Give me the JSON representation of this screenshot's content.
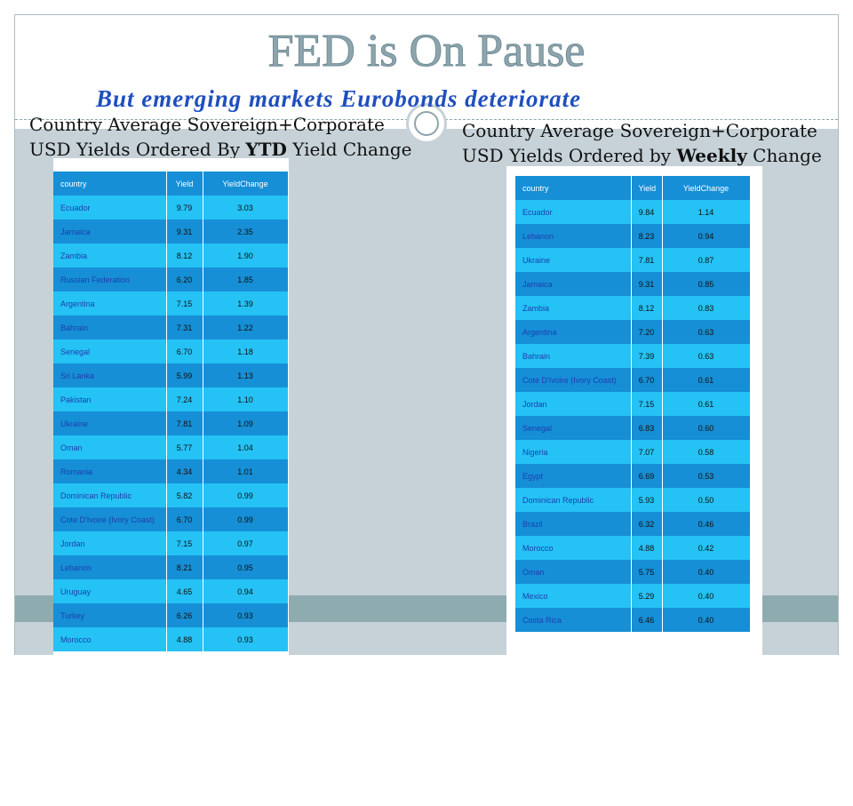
{
  "title": "FED is On Pause",
  "subtitle": "But emerging markets Eurobonds deteriorate",
  "left": {
    "caption": {
      "line1": "Country Average Sovereign+Corporate",
      "before": "USD Yields Ordered By ",
      "bold": "YTD",
      "after": " Yield Change"
    },
    "table": {
      "header": [
        "country",
        "Yield",
        "YieldChange"
      ],
      "rows": [
        [
          "Ecuador",
          "9.79",
          "3.03"
        ],
        [
          "Jamaica",
          "9.31",
          "2.35"
        ],
        [
          "Zambia",
          "8.12",
          "1.90"
        ],
        [
          "Russian Federation",
          "6.20",
          "1.85"
        ],
        [
          "Argentina",
          "7.15",
          "1.39"
        ],
        [
          "Bahrain",
          "7.31",
          "1.22"
        ],
        [
          "Senegal",
          "6.70",
          "1.18"
        ],
        [
          "Sri Lanka",
          "5.99",
          "1.13"
        ],
        [
          "Pakistan",
          "7.24",
          "1.10"
        ],
        [
          "Ukraine",
          "7.81",
          "1.09"
        ],
        [
          "Oman",
          "5.77",
          "1.04"
        ],
        [
          "Romania",
          "4.34",
          "1.01"
        ],
        [
          "Dominican Republic",
          "5.82",
          "0.99"
        ],
        [
          "Cote D'Ivoire (Ivory Coast)",
          "6.70",
          "0.99"
        ],
        [
          "Jordan",
          "7.15",
          "0.97"
        ],
        [
          "Lebanon",
          "8.21",
          "0.95"
        ],
        [
          "Uruguay",
          "4.65",
          "0.94"
        ],
        [
          "Turkey",
          "6.26",
          "0.93"
        ],
        [
          "Morocco",
          "4.88",
          "0.93"
        ]
      ]
    }
  },
  "right": {
    "caption": {
      "line1": "Country Average Sovereign+Corporate",
      "before": "USD Yields Ordered by ",
      "bold": "Weekly",
      "after": " Change"
    },
    "table": {
      "header": [
        "country",
        "Yield",
        "YieldChange"
      ],
      "rows": [
        [
          "Ecuador",
          "9.84",
          "1.14"
        ],
        [
          "Lebanon",
          "8.23",
          "0.94"
        ],
        [
          "Ukraine",
          "7.81",
          "0.87"
        ],
        [
          "Jamaica",
          "9.31",
          "0.85"
        ],
        [
          "Zambia",
          "8.12",
          "0.83"
        ],
        [
          "Argentina",
          "7.20",
          "0.63"
        ],
        [
          "Bahrain",
          "7.39",
          "0.63"
        ],
        [
          "Cote D'Ivoire (Ivory Coast)",
          "6.70",
          "0.61"
        ],
        [
          "Jordan",
          "7.15",
          "0.61"
        ],
        [
          "Senegal",
          "6.83",
          "0.60"
        ],
        [
          "Nigeria",
          "7.07",
          "0.58"
        ],
        [
          "Egypt",
          "6.69",
          "0.53"
        ],
        [
          "Dominican Republic",
          "5.93",
          "0.50"
        ],
        [
          "Brazil",
          "6.32",
          "0.46"
        ],
        [
          "Morocco",
          "4.88",
          "0.42"
        ],
        [
          "Oman",
          "5.75",
          "0.40"
        ],
        [
          "Mexico",
          "5.29",
          "0.40"
        ],
        [
          "Costa Rica",
          "6.46",
          "0.40"
        ]
      ]
    }
  }
}
